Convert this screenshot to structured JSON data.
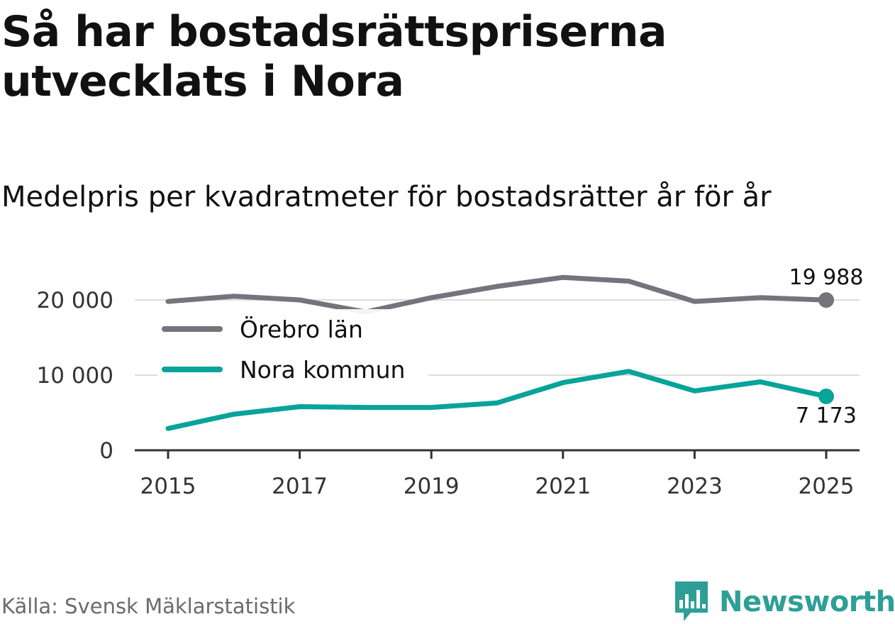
{
  "header": {
    "title": "Så har bostadsrättspriserna utvecklats i Nora",
    "subtitle": "Medelpris per kvadratmeter för bostadsrätter år för år"
  },
  "footer": {
    "source": "Källa: Svensk Mäklarstatistik",
    "brand": "Newsworthy",
    "brand_color": "#2e9f97"
  },
  "chart_data": {
    "type": "line",
    "title": "",
    "xlabel": "",
    "ylabel": "",
    "x": [
      2015,
      2016,
      2017,
      2018,
      2019,
      2020,
      2021,
      2022,
      2023,
      2024,
      2025
    ],
    "x_ticks": [
      "2015",
      "2017",
      "2019",
      "2021",
      "2023",
      "2025"
    ],
    "y_ticks": [
      {
        "value": 0,
        "label": "0"
      },
      {
        "value": 10000,
        "label": "10 000"
      },
      {
        "value": 20000,
        "label": "20 000"
      }
    ],
    "xlim": [
      2015,
      2025
    ],
    "ylim": [
      0,
      20000
    ],
    "grid": true,
    "legend_position": "top-left",
    "series": [
      {
        "name": "Örebro län",
        "color": "#75737b",
        "values": [
          19800,
          20500,
          20000,
          18400,
          20300,
          21800,
          23000,
          22500,
          19800,
          20300,
          19988
        ],
        "end_label": "19 988"
      },
      {
        "name": "Nora kommun",
        "color": "#08a399",
        "values": [
          2900,
          4800,
          5800,
          5700,
          5700,
          6300,
          9000,
          10500,
          7900,
          9100,
          7173
        ],
        "end_label": "7 173"
      }
    ]
  }
}
